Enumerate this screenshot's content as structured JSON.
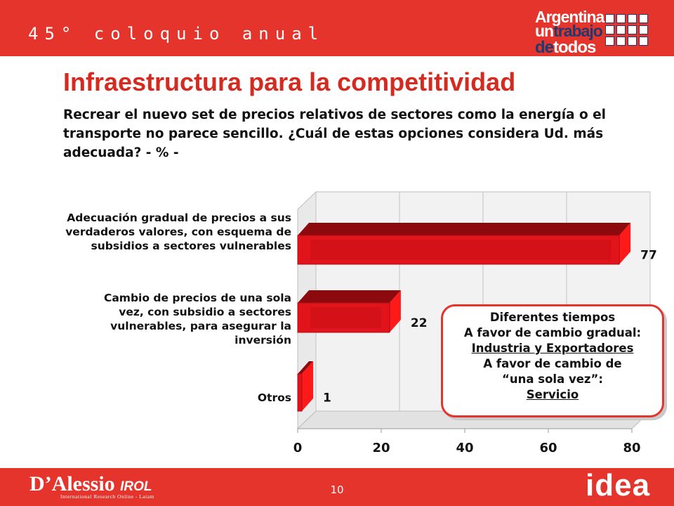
{
  "header": {
    "event": "45° coloquio anual"
  },
  "brand": {
    "line1": "Argentina",
    "line2a": "un",
    "line2b": "trabajo",
    "line3a": "de",
    "line3b": "todos"
  },
  "title": "Infraestructura para la competitividad",
  "question": "Recrear el nuevo set de precios relativos de sectores como la energía o el transporte no parece sencillo. ¿Cuál de estas opciones considera Ud. más adecuada? - % -",
  "categories_text": [
    [
      "Adecuación gradual de precios a sus",
      "verdaderos valores, con esquema de",
      "subsidios a sectores vulnerables"
    ],
    [
      "Cambio de precios de una sola",
      "vez, con subsidio a sectores",
      "vulnerables, para asegurar la",
      "inversión"
    ],
    [
      "Otros"
    ]
  ],
  "callout": {
    "line1": "Diferentes tiempos",
    "line2": "A favor de cambio gradual:",
    "line3": "Industria  y Exportadores",
    "line4": "A favor de cambio de",
    "line5": "“una sola vez”:",
    "line6": "Servicio"
  },
  "footer": {
    "page": "10",
    "company": "D’Alessio",
    "company_suffix": "IROL",
    "company_sub": "International Research Online - Latam",
    "logo": "idea"
  },
  "colors": {
    "accent": "#e4342c",
    "bar": "#e0141a",
    "bar_top": "#8c0a0d",
    "bar_side": "#ff1a1a",
    "navy": "#1f3a6e"
  },
  "chart_data": {
    "type": "bar",
    "orientation": "horizontal",
    "style": "3d",
    "categories": [
      "Adecuación gradual de precios a sus verdaderos valores, con esquema de subsidios a sectores vulnerables",
      "Cambio de precios de una sola vez, con subsidio a sectores vulnerables, para asegurar la inversión",
      "Otros"
    ],
    "values": [
      77,
      22,
      1
    ],
    "xlim": [
      0,
      80
    ],
    "xticks": [
      0,
      20,
      40,
      60,
      80
    ],
    "grid": true,
    "legend": "none"
  }
}
